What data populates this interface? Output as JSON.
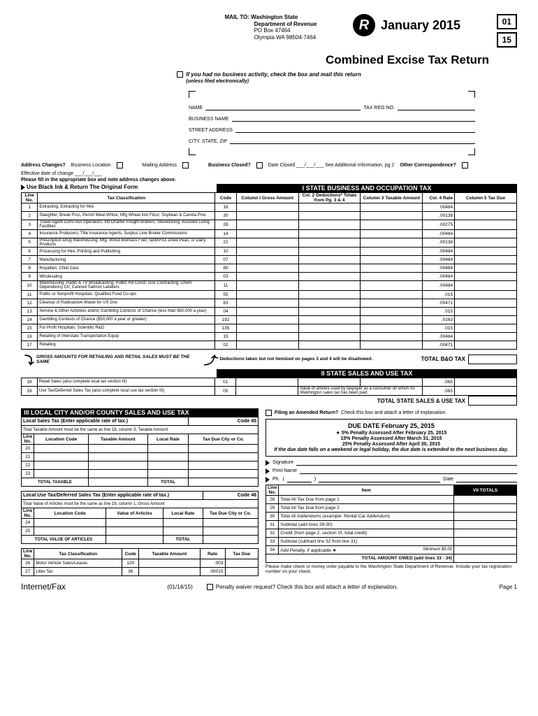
{
  "mail": {
    "label": "MAIL TO:",
    "dept1": "Washington State",
    "dept2": "Department of Revenue",
    "po": "PO Box 47464",
    "city": "Olympia WA 98504-7464"
  },
  "period": {
    "month": "January 2015",
    "mm": "01",
    "yy": "15"
  },
  "title": "Combined Excise Tax Return",
  "no_activity": {
    "txt": "If you had no business activity, check the box and mail this return",
    "sub": "(unless filed electronically)"
  },
  "ident": {
    "name": "NAME",
    "taxreg": "TAX REG NO.",
    "bus": "BUSINESS NAME",
    "street": "STREET ADDRESS",
    "city": "CITY, STATE, ZIP"
  },
  "addr": {
    "q": "Address Changes?",
    "bl": "Business Location",
    "ma": "Mailing Address",
    "bc": "Business Closed?",
    "dc": "Date Closed ___/___/___ See Additional Information, pg 2",
    "oc": "Other Correspondence?"
  },
  "eff": "Effective date of change ___/___/___",
  "note": "Please fill in the appropriate box and note address changes above.",
  "use_ink": "Use Black Ink & Return The Original Form",
  "sec1": "I  STATE BUSINESS AND OCCUPATION TAX",
  "hdr": {
    "line": "Line No.",
    "class": "Tax Classification",
    "code": "Code",
    "c1": "Column I\nGross Amount",
    "c2": "Col. 2 Deductions*\nTotals from Pg. 3 & 4",
    "c3": "Column 3\nTaxable Amount",
    "c4": "Col. 4\nRate",
    "c5": "Column 5\nTax Due"
  },
  "rows": [
    {
      "n": "1",
      "cls": "Extracting, Extracting for Hire",
      "code": "16",
      "rate": ".00484"
    },
    {
      "n": "2",
      "cls": "Slaughter, Break Proc, Perish Meat-Whlse; Mfg Wheat into Flour; Soybean & Canola Proc",
      "code": "30",
      "rate": ".00138"
    },
    {
      "n": "3",
      "cls": "Travel Agent Com/Tour Operators; Intl Charter Freight Brokers; Stevedoring; Assisted Living Facilities",
      "code": "28",
      "rate": ".00275"
    },
    {
      "n": "4",
      "cls": "Insurance Producers; Title Insurance Agents; Surplus Line Broker Commissions",
      "code": "14",
      "rate": ".00484"
    },
    {
      "n": "5",
      "cls": "Prescription Drug Warehousing; Mfg: Wood Biomass Fuel; Split/Proc Dried Peas; or Dairy Products",
      "code": "21",
      "rate": ".00138"
    },
    {
      "n": "6",
      "cls": "Processing for Hire; Printing and Publishing",
      "code": "10",
      "rate": ".00484"
    },
    {
      "n": "7",
      "cls": "Manufacturing",
      "code": "07",
      "rate": ".00484"
    },
    {
      "n": "8",
      "cls": "Royalties; Child Care",
      "code": "80",
      "rate": ".00484"
    },
    {
      "n": "9",
      "cls": "Wholesaling",
      "code": "03",
      "rate": ".00484"
    },
    {
      "n": "10",
      "cls": "Warehousing; Radio & TV Broadcasting; Public Rd Const; Gov Contracting; Chem Dependency Ctr; Canned Salmon Labelers",
      "code": "11",
      "rate": ".00484"
    },
    {
      "n": "11",
      "cls": "Public or Nonprofit Hospitals; Qualified Food Co-ops",
      "code": "55",
      "rate": ".015"
    },
    {
      "n": "12",
      "cls": "Cleanup of Radioactive Waste for US Gov",
      "code": "83",
      "rate": ".00471"
    },
    {
      "n": "13",
      "cls": "Service & Other Activities and/or Gambling Contests of Chance (less than $50,000 a year)",
      "code": "04",
      "rate": ".015"
    },
    {
      "n": "14",
      "cls": "Gambling Contests of Chance ($50,000 a year or greater)",
      "code": "192",
      "rate": ".0163"
    },
    {
      "n": "15",
      "cls": "For Profit Hospitals; Scientific R&D",
      "code": "135",
      "rate": ".015"
    },
    {
      "n": "16",
      "cls": "Retailing of Interstate Transportation Equip",
      "code": "19",
      "rate": ".00484"
    },
    {
      "n": "17",
      "cls": "Retailing",
      "code": "02",
      "rate": ".00471"
    }
  ],
  "gross_note": "GROSS AMOUNTS FOR RETAILING AND RETAIL SALES MUST BE THE SAME",
  "ded_note": "* Deductions taken but not itemized on pages 3 and 4 will be disallowed.",
  "total_bo": "TOTAL B&O TAX",
  "sec2": "II  STATE SALES AND USE TAX",
  "r18": {
    "n": "18",
    "cls": "Retail Sales (also complete local tax section III)",
    "code": "01",
    "rate": ".065"
  },
  "r19": {
    "n": "19",
    "cls": "Use Tax/Deferred Sales Tax (also complete local use tax section III)",
    "code": "05",
    "rate": ".065",
    "valnote": "Value of articles used by taxpayer as a consumer on which no Washington sales tax has been paid"
  },
  "total_ssu": "TOTAL STATE SALES & USE TAX",
  "sec3": "III  LOCAL CITY AND/OR COUNTY SALES AND USE TAX",
  "local45": {
    "title": "Local Sales Tax (Enter applicable rate of tax.)",
    "code": "Code 45",
    "note": "Total Taxable Amount must be the same as line 18, column 3, Taxable Amount",
    "h": {
      "line": "Line No.",
      "loc": "Location Code",
      "ta": "Taxable Amount",
      "lr": "Local Rate",
      "td": "Tax Due City or Co."
    },
    "lines": [
      "20",
      "21",
      "22",
      "23"
    ],
    "tot": "TOTAL TAXABLE",
    "totr": "TOTAL"
  },
  "local46": {
    "title": "Local Use Tax/Deferred Sales Tax (Enter applicable rate of tax.)",
    "code": "Code 46",
    "note": "Total Value of Articles must be the same as line 19, column 1, Gross Amount",
    "h": {
      "line": "Line No.",
      "loc": "Location Code",
      "va": "Value of Articles",
      "lr": "Local Rate",
      "td": "Tax Due City or Co."
    },
    "lines": [
      "24",
      "25"
    ],
    "tot": "TOTAL VALUE OF ARTICLES",
    "totr": "TOTAL"
  },
  "misc": {
    "h": {
      "line": "Line No.",
      "tc": "Tax Classification",
      "code": "Code",
      "ta": "Taxable Amount",
      "rate": "Rate",
      "td": "Tax Due"
    },
    "r26": {
      "n": "26",
      "cls": "Motor Vehicle Sales/Leases",
      "code": "120",
      "rate": ".003"
    },
    "r27": {
      "n": "27",
      "cls": "Litter Tax",
      "code": "36",
      "rate": ".00015"
    }
  },
  "amend": {
    "lbl": "Filing an Amended Return?",
    "txt": "Check this box and attach a letter of explanation."
  },
  "due": {
    "title": "DUE DATE February 25, 2015",
    "p1": "5% Penalty Assessed After February 25, 2015",
    "p2": "15% Penalty Assessed After March 31, 2015",
    "p3": "25% Penalty Assessed After April 30, 2015",
    "ital": "If the due date falls on a weekend or legal holiday, the due date is extended to the next business day."
  },
  "sig": {
    "sig": "Signature",
    "pn": "Print Name",
    "ph": "Ph.",
    "dt": "Date"
  },
  "sec7": "VII  TOTALS",
  "totals": {
    "h": {
      "line": "Line No.",
      "item": "Item"
    },
    "rows": [
      {
        "n": "28",
        "t": "Total All Tax Due from page 1"
      },
      {
        "n": "29",
        "t": "Total All Tax Due from page 2"
      },
      {
        "n": "30",
        "t": "Total All Addendums (example: Rental Car Addendum)"
      },
      {
        "n": "31",
        "t": "Subtotal (add lines 28-30)"
      },
      {
        "n": "32",
        "t": "Credit (from page 2, section VI, total credit)"
      },
      {
        "n": "33",
        "t": "Subtotal (subtract line 32 from line 31)"
      },
      {
        "n": "34",
        "t": "Add Penalty, if applicable  ★",
        "min": "Minimum $5.00"
      }
    ],
    "owed": "TOTAL AMOUNT OWED (add lines 33 - 34)"
  },
  "pay_note": "Please make check or money order payable to the Washington State Department of Revenue. Include your tax registration number on your check.",
  "footer": {
    "l": "Internet/Fax",
    "date": "(01/14/15)",
    "waiver": "Penalty waiver request? Check this box and attach a letter of explanation.",
    "pg": "Page 1"
  }
}
